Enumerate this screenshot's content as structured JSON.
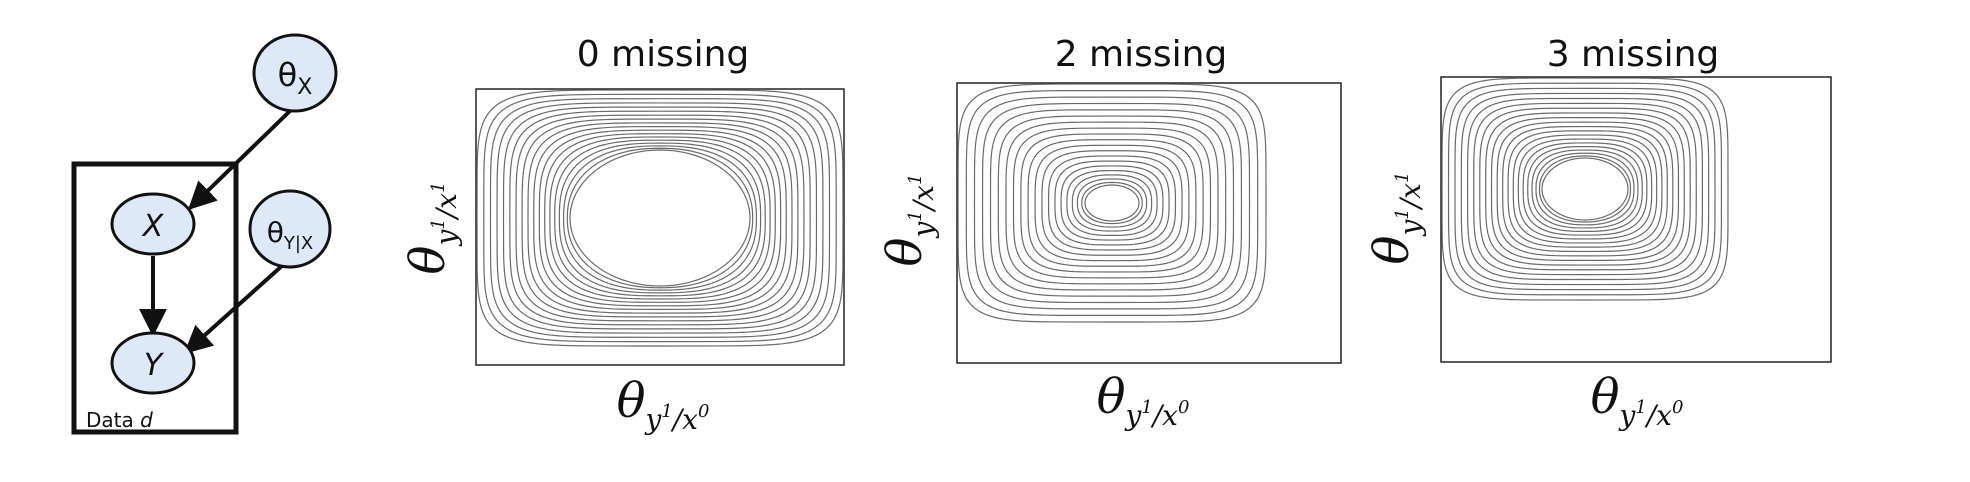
{
  "network": {
    "nodes": {
      "theta_x": {
        "main": "θ",
        "sub": "X"
      },
      "x": {
        "label": "X"
      },
      "theta_y_given_x": {
        "main": "θ",
        "sub": "Y|X"
      },
      "y": {
        "label": "Y"
      }
    },
    "plate_label": {
      "prefix": "Data ",
      "var": "d"
    },
    "node_fill": "#dde9f9"
  },
  "panels": [
    {
      "title": "0 missing",
      "y_axis": {
        "symbol": "θ",
        "sub": "y",
        "sup1": "1",
        "mid": "/x",
        "sup2": "1"
      },
      "x_axis": {
        "symbol": "θ",
        "sub": "y",
        "sup1": "1",
        "mid": "/x",
        "sup2": "0"
      },
      "contour_pattern": "concentric, no distinct peak"
    },
    {
      "title": "2 missing",
      "y_axis": {
        "symbol": "θ",
        "sub": "y",
        "sup1": "1",
        "mid": "/x",
        "sup2": "1"
      },
      "x_axis": {
        "symbol": "θ",
        "sub": "y",
        "sup1": "1",
        "mid": "/x",
        "sup2": "0"
      },
      "contour_pattern": "concentric with small central peak"
    },
    {
      "title": "3 missing",
      "y_axis": {
        "symbol": "θ",
        "sub": "y",
        "sup1": "1",
        "mid": "/x",
        "sup2": "1"
      },
      "x_axis": {
        "symbol": "θ",
        "sub": "y",
        "sup1": "1",
        "mid": "/x",
        "sup2": "0"
      },
      "contour_pattern": "concentric with offset upper-left peak"
    }
  ],
  "colors": {
    "contour_line": "#6a6a6a",
    "frame": "#222222"
  }
}
